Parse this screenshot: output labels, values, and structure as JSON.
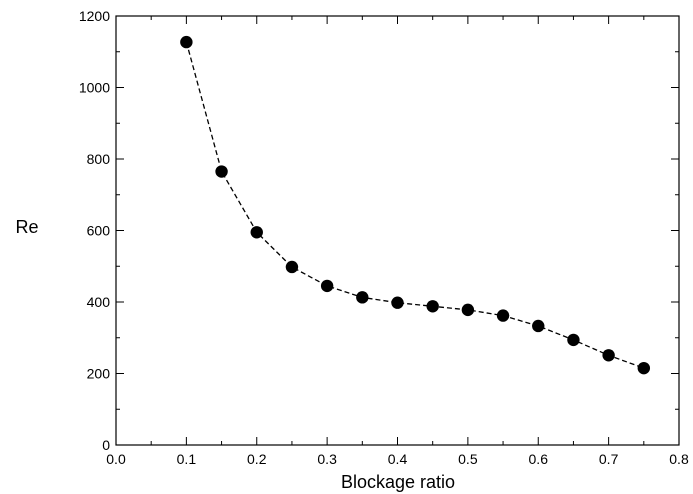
{
  "chart_data": {
    "type": "line",
    "title": "",
    "xlabel": "Blockage ratio",
    "ylabel": "Re",
    "xlim": [
      0.0,
      0.8
    ],
    "ylim": [
      0,
      1200
    ],
    "grid": false,
    "x_ticks": [
      "0.0",
      "0.1",
      "0.2",
      "0.3",
      "0.4",
      "0.5",
      "0.6",
      "0.7",
      "0.8"
    ],
    "y_ticks": [
      "0",
      "200",
      "400",
      "600",
      "800",
      "1000",
      "1200"
    ],
    "series": [
      {
        "x": [
          0.1,
          0.15,
          0.2,
          0.25,
          0.3,
          0.35,
          0.4,
          0.45,
          0.5,
          0.55,
          0.6,
          0.65,
          0.7,
          0.75
        ],
        "y": [
          1127,
          765,
          595,
          498,
          445,
          413,
          398,
          388,
          378,
          362,
          333,
          294,
          251,
          215
        ],
        "marker": "filled-circle",
        "line_style": "dashed",
        "color": "#000000"
      }
    ]
  }
}
